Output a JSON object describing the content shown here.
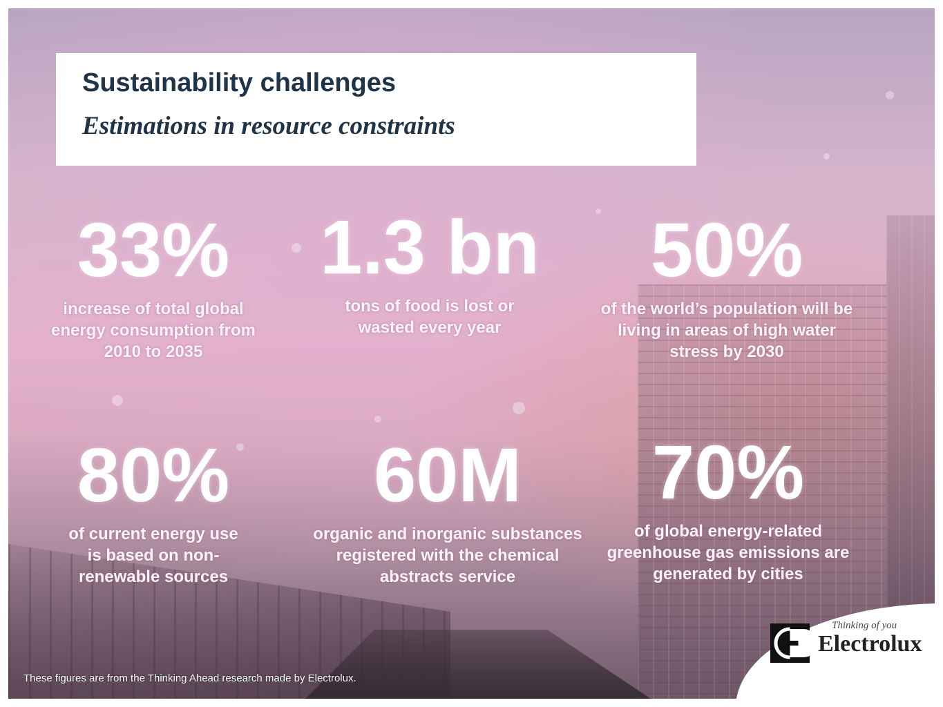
{
  "header": {
    "title": "Sustainability challenges",
    "subtitle": "Estimations in resource constraints"
  },
  "stats": [
    {
      "value": "33%",
      "description": "increase of  total global energy consumption from 2010 to 2035"
    },
    {
      "value": "1.3 bn",
      "description": "tons of food is lost or wasted every year"
    },
    {
      "value": "50%",
      "description": "of the world’s population will be living in areas of high water stress by 2030"
    },
    {
      "value": "80%",
      "description": "of current energy use is based on non-renewable sources"
    },
    {
      "value": "60M",
      "description": "organic and inorganic substances registered with the chemical abstracts service"
    },
    {
      "value": "70%",
      "description": "of global energy-related greenhouse gas emissions are generated by cities"
    }
  ],
  "footnote": "These figures are from the Thinking Ahead research made by Electrolux.",
  "brand": {
    "name": "Electrolux",
    "tagline": "Thinking of you",
    "logo_icon": "electrolux-logo-icon"
  }
}
